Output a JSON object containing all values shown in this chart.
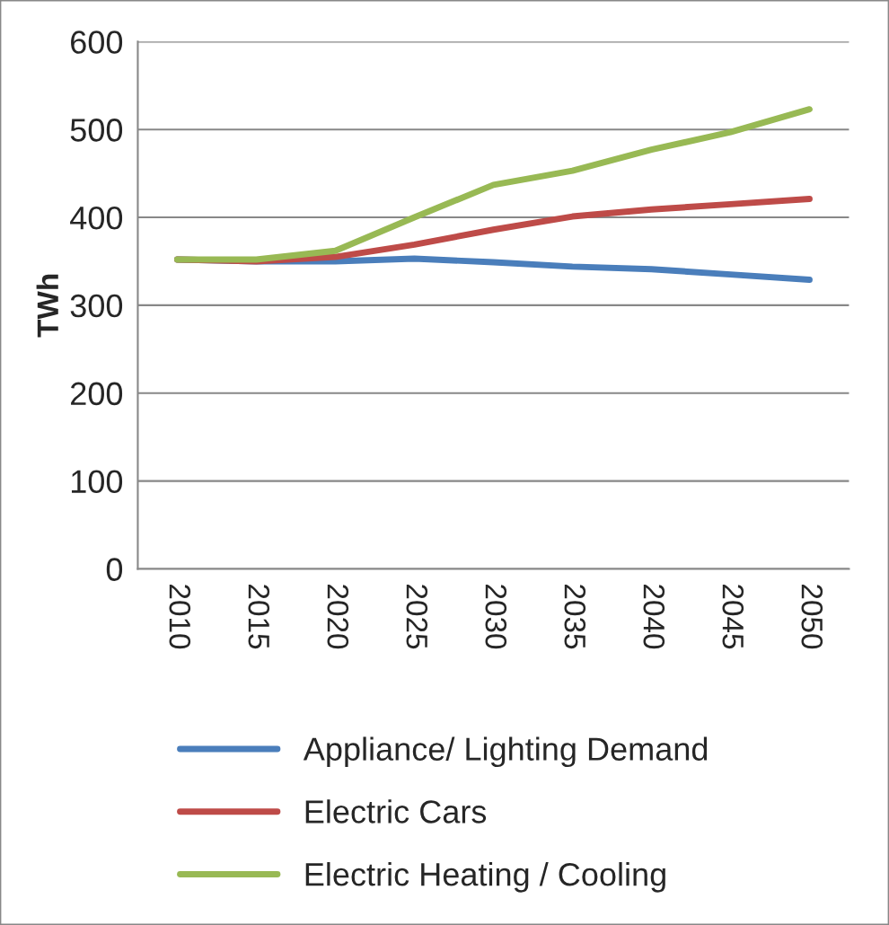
{
  "chart_data": {
    "type": "line",
    "ylabel": "TWh",
    "categories": [
      "2010",
      "2015",
      "2020",
      "2025",
      "2030",
      "2035",
      "2040",
      "2045",
      "2050"
    ],
    "series": [
      {
        "name": "Appliance/ Lighting Demand",
        "color": "#4a7ebb",
        "values": [
          352,
          350,
          350,
          353,
          349,
          344,
          341,
          335,
          329
        ]
      },
      {
        "name": "Electric Cars",
        "color": "#be4b48",
        "values": [
          352,
          350,
          355,
          369,
          386,
          401,
          409,
          415,
          421
        ]
      },
      {
        "name": "Electric Heating / Cooling",
        "color": "#98b954",
        "values": [
          352,
          352,
          362,
          400,
          437,
          453,
          477,
          497,
          523
        ]
      }
    ],
    "ylim": [
      0,
      600
    ],
    "yticks": [
      0,
      100,
      200,
      300,
      400,
      500,
      600
    ],
    "grid": "y",
    "legend": "bottom",
    "marker": "none",
    "line_style": "solid"
  }
}
